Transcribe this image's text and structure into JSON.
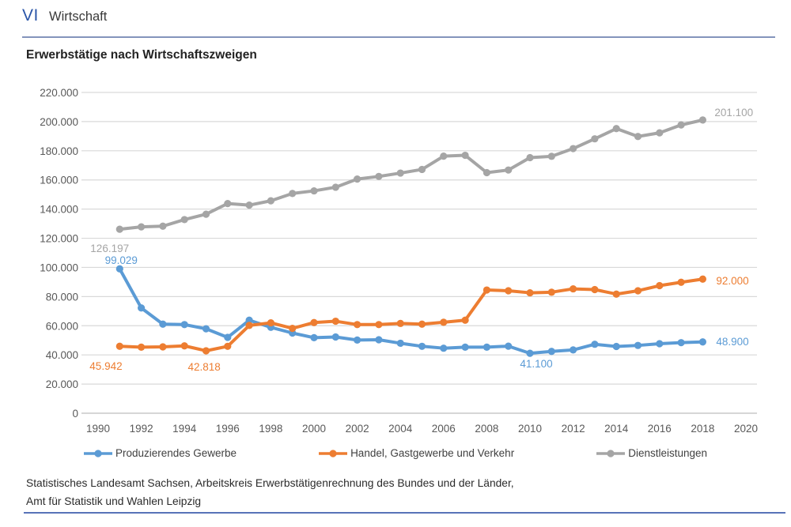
{
  "header": {
    "section_number": "VI",
    "section_title": "Wirtschaft"
  },
  "chart_title": "Erwerbstätige nach Wirtschaftszweigen",
  "chart_data": {
    "type": "line",
    "title": "Erwerbstätige nach Wirtschaftszweigen",
    "x": [
      1991,
      1992,
      1993,
      1994,
      1995,
      1996,
      1997,
      1998,
      1999,
      2000,
      2001,
      2002,
      2003,
      2004,
      2005,
      2006,
      2007,
      2008,
      2009,
      2010,
      2011,
      2012,
      2013,
      2014,
      2015,
      2016,
      2017,
      2018
    ],
    "x_axis": {
      "range": [
        1990,
        2020
      ],
      "ticks": [
        1990,
        1992,
        1994,
        1996,
        1998,
        2000,
        2002,
        2004,
        2006,
        2008,
        2010,
        2012,
        2014,
        2016,
        2018,
        2020
      ]
    },
    "y_axis": {
      "range": [
        0,
        220000
      ],
      "tick_step": 20000,
      "tick_labels": [
        "0",
        "20.000",
        "40.000",
        "60.000",
        "80.000",
        "100.000",
        "120.000",
        "140.000",
        "160.000",
        "180.000",
        "200.000",
        "220.000"
      ],
      "grid": true
    },
    "grid_color": "#d9d9d9",
    "axis_line_color": "#c9c9c9",
    "axis_text_color": "#595959",
    "legend_position": "bottom",
    "series": [
      {
        "name": "Produzierendes Gewerbe",
        "color": "#5B9BD5",
        "values": [
          99029,
          72200,
          61100,
          60800,
          57900,
          52000,
          63800,
          58900,
          55000,
          51800,
          52300,
          50200,
          50400,
          48000,
          45900,
          44600,
          45300,
          45300,
          46000,
          41100,
          42400,
          43400,
          47300,
          45800,
          46500,
          47700,
          48400,
          48900
        ],
        "data_labels": [
          {
            "year": 1991,
            "text": "99.029",
            "dx": 2,
            "dy": -6,
            "anchor": "middle"
          },
          {
            "year": 2010,
            "text": "41.100",
            "dx": 8,
            "dy": 18,
            "anchor": "middle"
          },
          {
            "year": 2018,
            "text": "48.900",
            "dx": 17,
            "dy": 4,
            "anchor": "start"
          }
        ]
      },
      {
        "name": "Handel, Gastgewerbe und Verkehr",
        "color": "#ED7D31",
        "values": [
          45942,
          45300,
          45500,
          46200,
          42818,
          45900,
          60200,
          62000,
          58200,
          62200,
          63100,
          60800,
          60800,
          61600,
          61100,
          62400,
          63800,
          84500,
          84000,
          82600,
          83000,
          85300,
          84800,
          81700,
          84000,
          87500,
          89800,
          92000
        ],
        "data_labels": [
          {
            "year": 1991,
            "text": "45.942",
            "dx": -38,
            "dy": 30,
            "anchor": "start"
          },
          {
            "year": 1995,
            "text": "42.818",
            "dx": -23,
            "dy": 25,
            "anchor": "start"
          },
          {
            "year": 2018,
            "text": "92.000",
            "dx": 17,
            "dy": 7,
            "anchor": "start"
          }
        ]
      },
      {
        "name": "Dienstleistungen",
        "color": "#A5A5A5",
        "values": [
          126197,
          127800,
          128300,
          132800,
          136500,
          143800,
          142700,
          145700,
          150700,
          152500,
          155000,
          160600,
          162400,
          164700,
          167200,
          176300,
          176900,
          165000,
          166800,
          175300,
          176200,
          181500,
          188200,
          195200,
          189800,
          192300,
          197700,
          201100
        ],
        "data_labels": [
          {
            "year": 1991,
            "text": "126.197",
            "dx": -37,
            "dy": 29,
            "anchor": "start"
          },
          {
            "year": 2018,
            "text": "201.100",
            "dx": 15,
            "dy": -5,
            "anchor": "start"
          }
        ]
      }
    ]
  },
  "footer": {
    "source_line1": "Statistisches Landesamt Sachsen, Arbeitskreis Erwerbstätigenrechnung des Bundes und der Länder,",
    "source_line2": "Amt für Statistik und Wahlen Leipzig"
  },
  "colors": {
    "header_accent": "#2a55a8",
    "divider_top": "#8494bc",
    "divider_bottom": "#5873b8"
  }
}
